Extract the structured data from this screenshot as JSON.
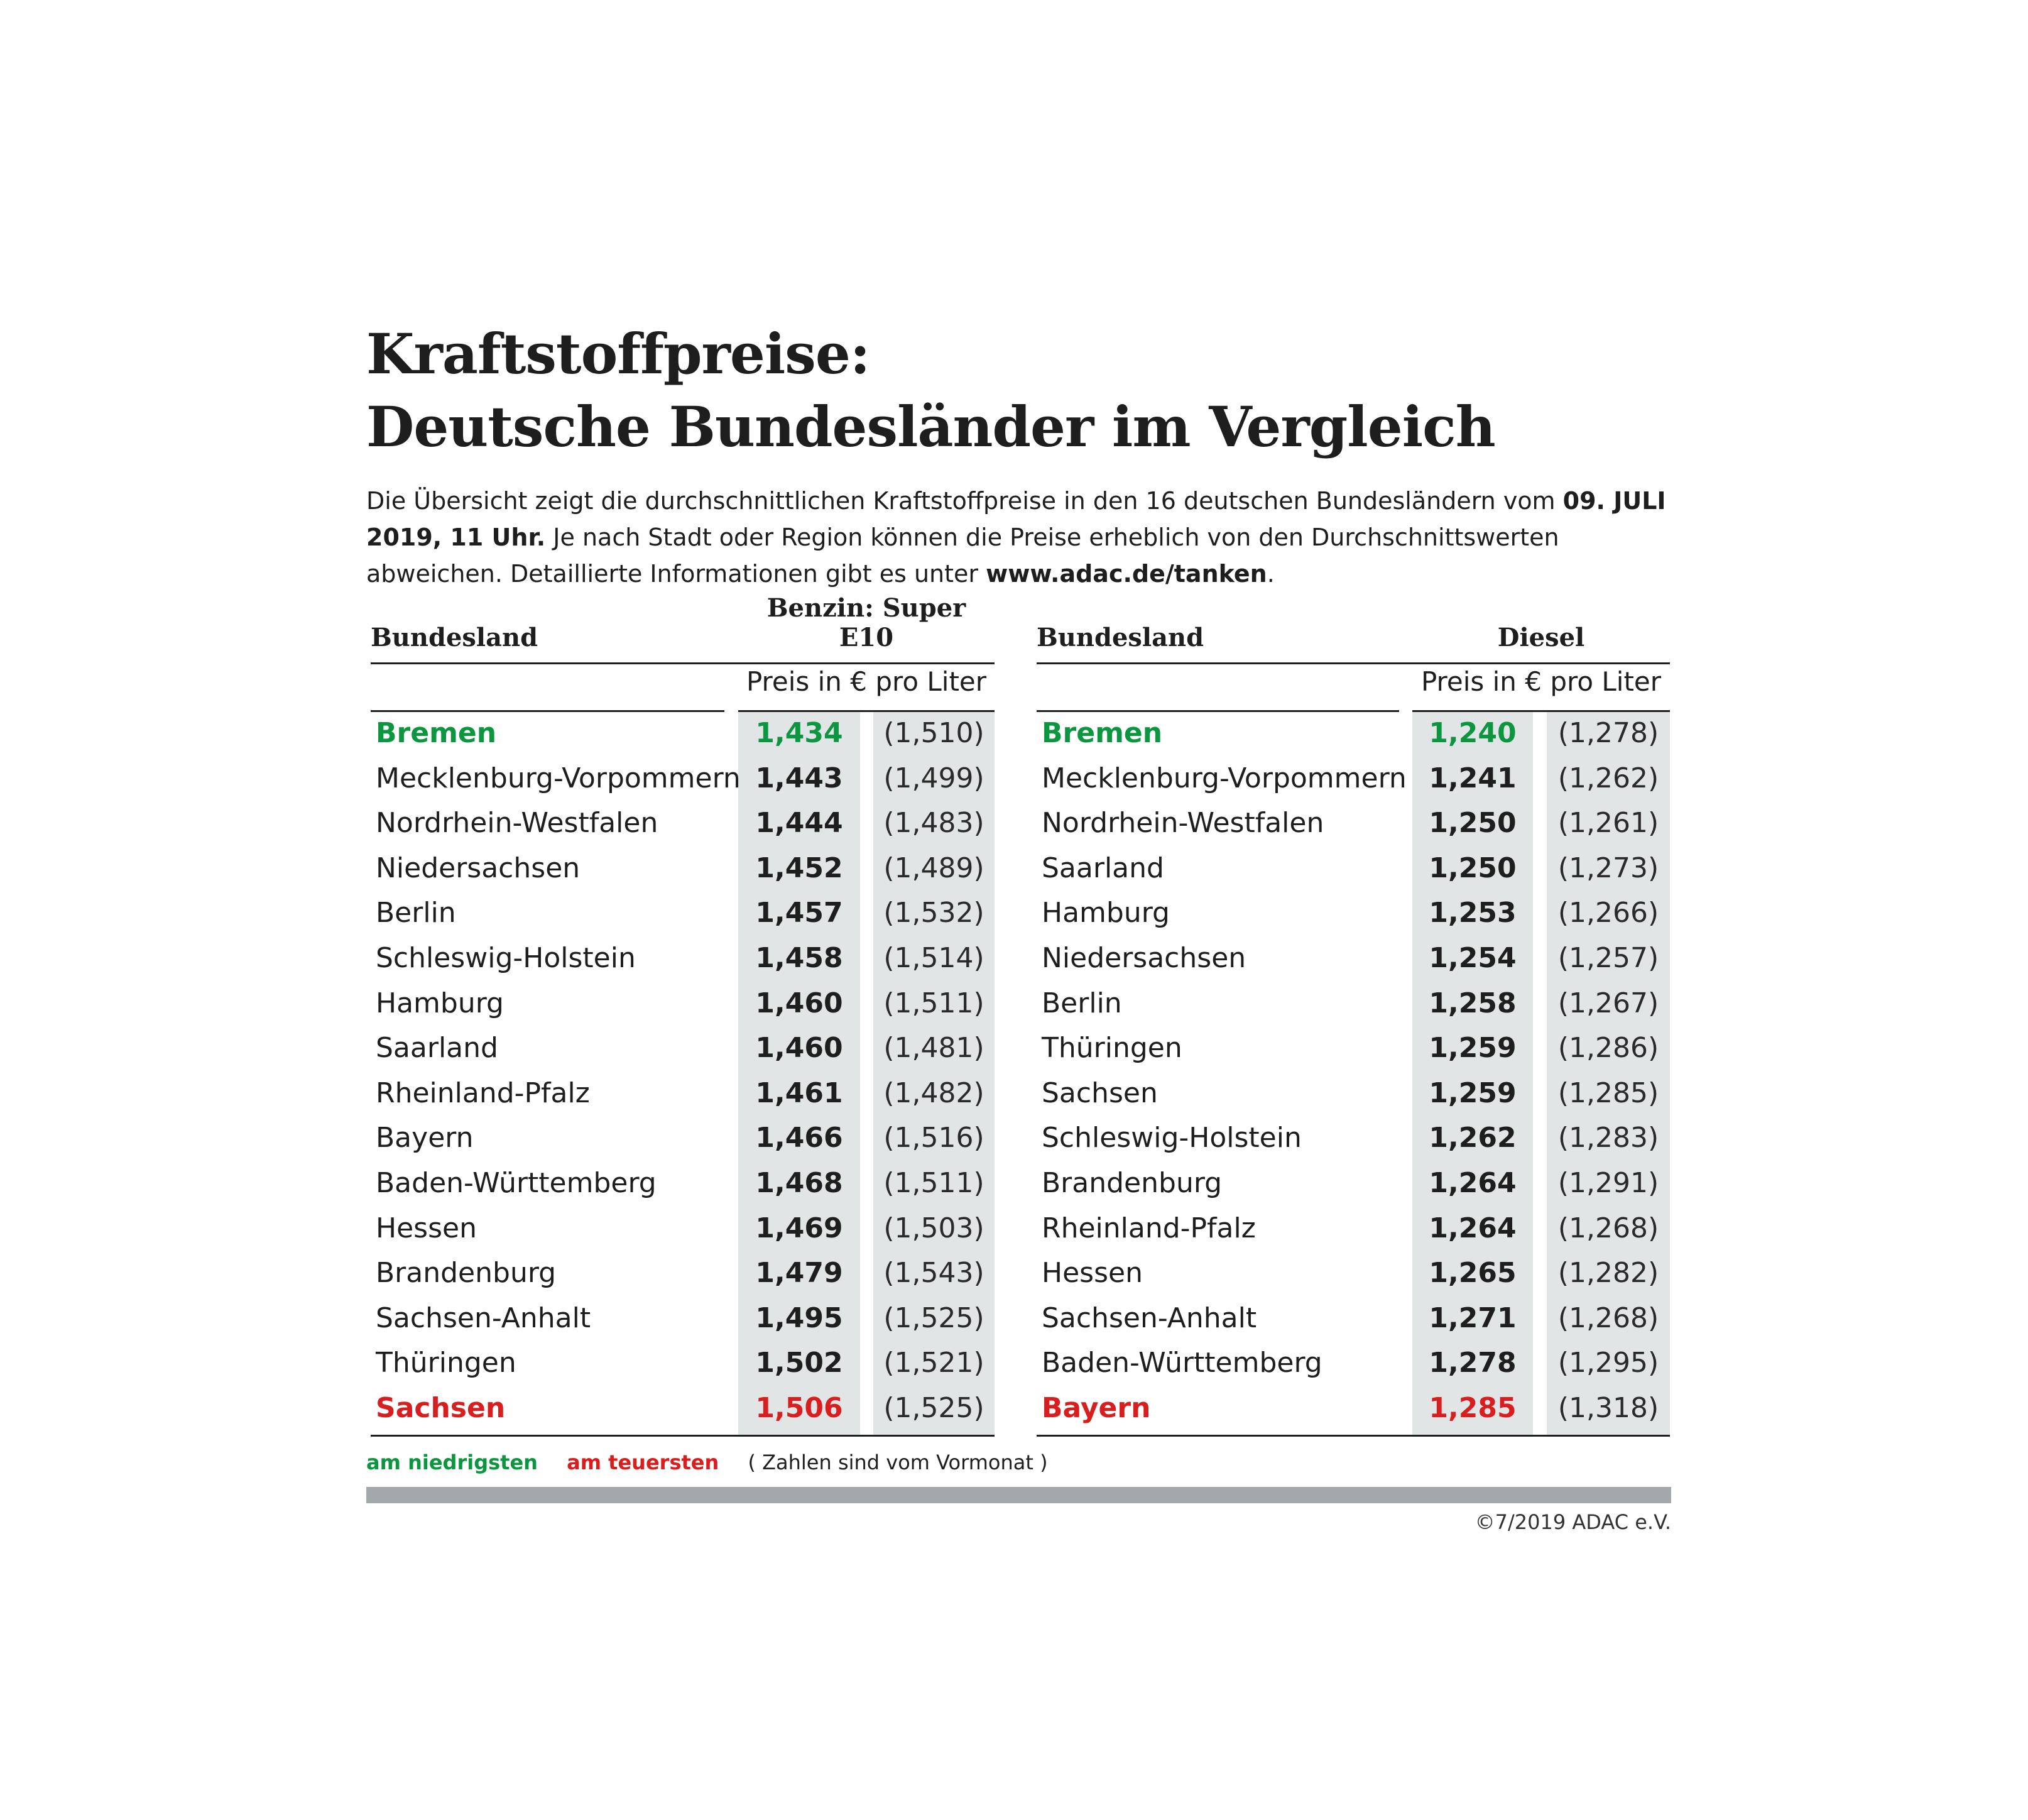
{
  "title": {
    "line1": "Kraftstoffpreise:",
    "line2": "Deutsche Bundesländer im Vergleich"
  },
  "intro": {
    "part1": "Die Übersicht zeigt die durchschnittlichen Kraftstoffpreise in den 16 deutschen Bundesländern vom ",
    "date_bold": "09. JULI 2019, 11 Uhr.",
    "part2": " Je nach Stadt oder Region können die Preise erheblich von den Durchschnittswerten abweichen. Detaillierte Informationen gibt es unter ",
    "link_bold": "www.adac.de/tanken",
    "part3": "."
  },
  "colors": {
    "lowest": "#0d9640",
    "highest": "#d81e1e",
    "column_shade": "#e1e5e6",
    "bar": "#a3a8aa"
  },
  "tables": [
    {
      "col_name": "Bundesland",
      "col_fuel": "Benzin:  Super E10",
      "unit": "Preis in € pro Liter",
      "rows": [
        {
          "state": "Bremen",
          "price": "1,434",
          "prev": "(1,510)",
          "mark": "lowest"
        },
        {
          "state": "Mecklenburg-Vorpommern",
          "price": "1,443",
          "prev": "(1,499)"
        },
        {
          "state": "Nordrhein-Westfalen",
          "price": "1,444",
          "prev": "(1,483)"
        },
        {
          "state": "Niedersachsen",
          "price": "1,452",
          "prev": "(1,489)"
        },
        {
          "state": "Berlin",
          "price": "1,457",
          "prev": "(1,532)"
        },
        {
          "state": "Schleswig-Holstein",
          "price": "1,458",
          "prev": "(1,514)"
        },
        {
          "state": "Hamburg",
          "price": "1,460",
          "prev": "(1,511)"
        },
        {
          "state": "Saarland",
          "price": "1,460",
          "prev": "(1,481)"
        },
        {
          "state": "Rheinland-Pfalz",
          "price": "1,461",
          "prev": "(1,482)"
        },
        {
          "state": "Bayern",
          "price": "1,466",
          "prev": "(1,516)"
        },
        {
          "state": "Baden-Württemberg",
          "price": "1,468",
          "prev": "(1,511)"
        },
        {
          "state": "Hessen",
          "price": "1,469",
          "prev": "(1,503)"
        },
        {
          "state": "Brandenburg",
          "price": "1,479",
          "prev": "(1,543)"
        },
        {
          "state": "Sachsen-Anhalt",
          "price": "1,495",
          "prev": "(1,525)"
        },
        {
          "state": "Thüringen",
          "price": "1,502",
          "prev": "(1,521)"
        },
        {
          "state": "Sachsen",
          "price": "1,506",
          "prev": "(1,525)",
          "mark": "highest"
        }
      ]
    },
    {
      "col_name": "Bundesland",
      "col_fuel": "Diesel",
      "unit": "Preis in € pro Liter",
      "rows": [
        {
          "state": "Bremen",
          "price": "1,240",
          "prev": "(1,278)",
          "mark": "lowest"
        },
        {
          "state": "Mecklenburg-Vorpommern",
          "price": "1,241",
          "prev": "(1,262)"
        },
        {
          "state": "Nordrhein-Westfalen",
          "price": "1,250",
          "prev": "(1,261)"
        },
        {
          "state": "Saarland",
          "price": "1,250",
          "prev": "(1,273)"
        },
        {
          "state": "Hamburg",
          "price": "1,253",
          "prev": "(1,266)"
        },
        {
          "state": "Niedersachsen",
          "price": "1,254",
          "prev": "(1,257)"
        },
        {
          "state": "Berlin",
          "price": "1,258",
          "prev": "(1,267)"
        },
        {
          "state": "Thüringen",
          "price": "1,259",
          "prev": "(1,286)"
        },
        {
          "state": "Sachsen",
          "price": "1,259",
          "prev": "(1,285)"
        },
        {
          "state": "Schleswig-Holstein",
          "price": "1,262",
          "prev": "(1,283)"
        },
        {
          "state": "Brandenburg",
          "price": "1,264",
          "prev": "(1,291)"
        },
        {
          "state": "Rheinland-Pfalz",
          "price": "1,264",
          "prev": "(1,268)"
        },
        {
          "state": "Hessen",
          "price": "1,265",
          "prev": "(1,282)"
        },
        {
          "state": "Sachsen-Anhalt",
          "price": "1,271",
          "prev": "(1,268)"
        },
        {
          "state": "Baden-Württemberg",
          "price": "1,278",
          "prev": "(1,295)"
        },
        {
          "state": "Bayern",
          "price": "1,285",
          "prev": "(1,318)",
          "mark": "highest"
        }
      ]
    }
  ],
  "legend": {
    "lowest": "am niedrigsten",
    "highest": "am teuersten",
    "note": "( Zahlen sind vom Vormonat )"
  },
  "copyright": "©7/2019 ADAC e.V."
}
